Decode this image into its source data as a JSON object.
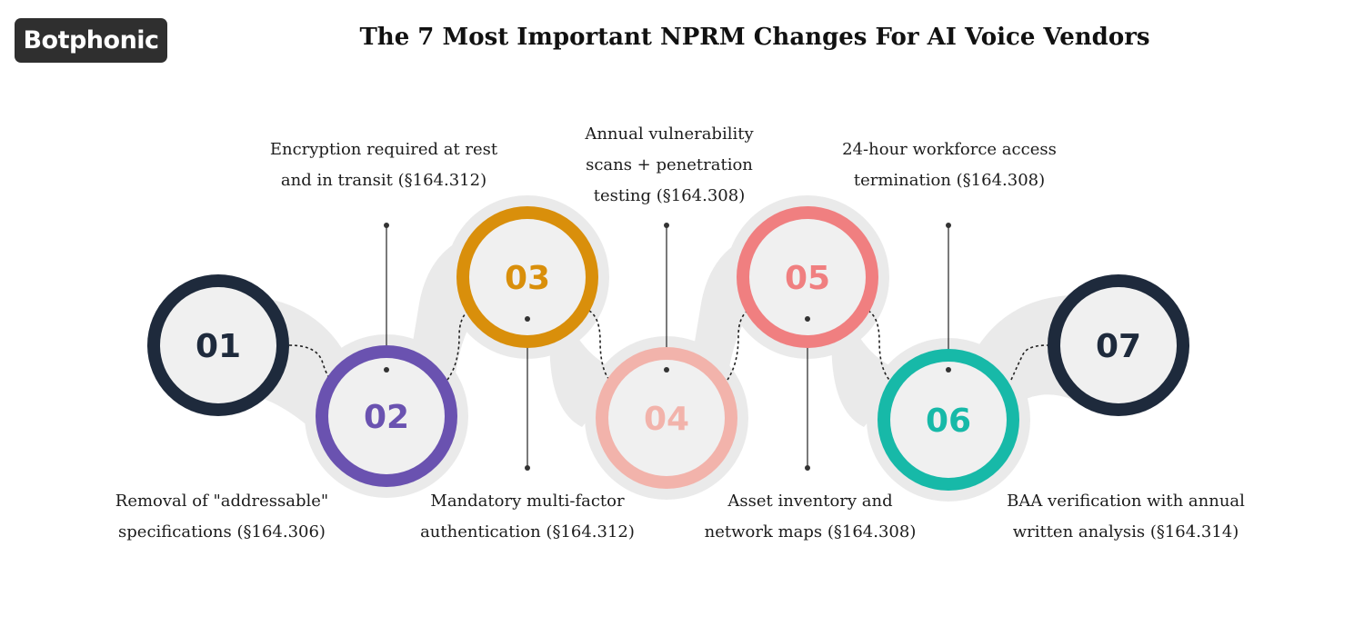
{
  "brand": {
    "logo_text": "Botphonic"
  },
  "title": "The 7 Most Important NPRM Changes For AI Voice Vendors",
  "colors": {
    "ring_01": "#1e2a3c",
    "ring_02": "#6a52b0",
    "ring_03": "#d98f0b",
    "ring_04": "#f2b3ab",
    "ring_05": "#f07f80",
    "ring_06": "#17b9a8",
    "ring_07": "#1e2a3c",
    "track": "#eaeaea"
  },
  "steps": [
    {
      "number": "01",
      "lines": [
        "Removal of \"addressable\"",
        "specifications (§164.306)"
      ]
    },
    {
      "number": "02",
      "lines": [
        "Encryption required at rest",
        "and in transit (§164.312)"
      ]
    },
    {
      "number": "03",
      "lines": [
        "Mandatory multi-factor",
        "authentication (§164.312)"
      ]
    },
    {
      "number": "04",
      "lines": [
        "Annual vulnerability",
        "scans + penetration",
        "testing (§164.308)"
      ]
    },
    {
      "number": "05",
      "lines": [
        "Asset inventory and",
        "network maps (§164.308)"
      ]
    },
    {
      "number": "06",
      "lines": [
        "24-hour workforce access",
        "termination (§164.308)"
      ]
    },
    {
      "number": "07",
      "lines": [
        "BAA verification with annual",
        "written analysis (§164.314)"
      ]
    }
  ]
}
